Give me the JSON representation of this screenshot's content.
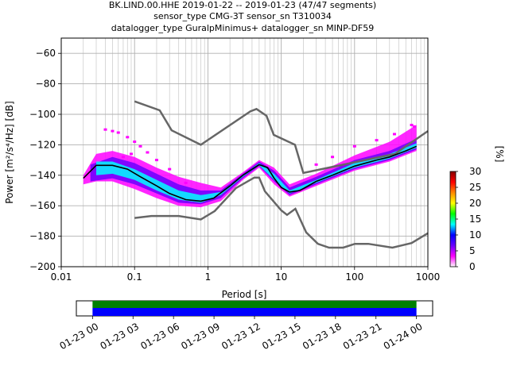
{
  "chart_data": {
    "type": "heatmap",
    "title_lines": [
      "BK.LIND.00.HHE   2019-01-22 -- 2019-01-23  (47/47 segments)",
      "sensor_type CMG-3T sensor_sn T310034",
      "datalogger_type GuralpMinimus+ datalogger_sn MINP-DF59"
    ],
    "xlabel": "Period [s]",
    "ylabel": "Power [m²/s⁴/Hz] [dB]",
    "x_scale": "log",
    "xlim": [
      0.01,
      1000
    ],
    "ylim": [
      -200,
      -50
    ],
    "x_ticks": [
      {
        "value": 0.01,
        "label": "0.01"
      },
      {
        "value": 0.1,
        "label": "0.1"
      },
      {
        "value": 1,
        "label": "1"
      },
      {
        "value": 10,
        "label": "10"
      },
      {
        "value": 100,
        "label": "100"
      },
      {
        "value": 1000,
        "label": "1000"
      }
    ],
    "y_ticks": [
      {
        "value": -60,
        "label": "−60"
      },
      {
        "value": -80,
        "label": "−80"
      },
      {
        "value": -100,
        "label": "−100"
      },
      {
        "value": -120,
        "label": "−120"
      },
      {
        "value": -140,
        "label": "−140"
      },
      {
        "value": -160,
        "label": "−160"
      },
      {
        "value": -180,
        "label": "−180"
      },
      {
        "value": -200,
        "label": "−200"
      }
    ],
    "grid": true,
    "colorbar": {
      "label": "[%]",
      "range": [
        0,
        30
      ],
      "ticks": [
        {
          "value": 0,
          "label": "0"
        },
        {
          "value": 5,
          "label": "5"
        },
        {
          "value": 10,
          "label": "10"
        },
        {
          "value": 15,
          "label": "15"
        },
        {
          "value": 20,
          "label": "20"
        },
        {
          "value": 25,
          "label": "25"
        },
        {
          "value": 30,
          "label": "30"
        }
      ],
      "colors": [
        "#ffffff",
        "#ff00ff",
        "#6a00ff",
        "#0000ff",
        "#00ffff",
        "#00ff00",
        "#ffff00",
        "#ff8800",
        "#ff0000",
        "#880000"
      ]
    },
    "noise_models": {
      "new_high_noise_model": [
        [
          0.1,
          -91.5
        ],
        [
          0.22,
          -97.4
        ],
        [
          0.32,
          -110.5
        ],
        [
          0.8,
          -120
        ],
        [
          3.8,
          -98
        ],
        [
          4.6,
          -96.5
        ],
        [
          6.3,
          -101
        ],
        [
          7.9,
          -113.5
        ],
        [
          15.4,
          -120
        ],
        [
          20,
          -138.5
        ],
        [
          354.8,
          -126
        ],
        [
          1000,
          -111
        ]
      ],
      "new_low_noise_model": [
        [
          0.1,
          -168
        ],
        [
          0.17,
          -166.7
        ],
        [
          0.4,
          -166.7
        ],
        [
          0.8,
          -169
        ],
        [
          1.24,
          -163.5
        ],
        [
          2.4,
          -148.5
        ],
        [
          4.3,
          -141.5
        ],
        [
          5.0,
          -141.5
        ],
        [
          6.0,
          -150.5
        ],
        [
          10,
          -163
        ],
        [
          12,
          -166
        ],
        [
          15.6,
          -162
        ],
        [
          21.9,
          -177.5
        ],
        [
          31.6,
          -185
        ],
        [
          45,
          -187.5
        ],
        [
          70,
          -187.5
        ],
        [
          101,
          -185
        ],
        [
          154,
          -185
        ],
        [
          328,
          -187.5
        ],
        [
          600,
          -184.5
        ],
        [
          1000,
          -178
        ]
      ]
    },
    "mean_curve": [
      [
        0.02,
        -142
      ],
      [
        0.03,
        -133.5
      ],
      [
        0.05,
        -133.5
      ],
      [
        0.08,
        -136
      ],
      [
        0.12,
        -141
      ],
      [
        0.2,
        -147
      ],
      [
        0.3,
        -152
      ],
      [
        0.5,
        -156
      ],
      [
        0.8,
        -157
      ],
      [
        1.2,
        -155
      ],
      [
        2,
        -147
      ],
      [
        3,
        -140
      ],
      [
        5,
        -133
      ],
      [
        6.5,
        -135
      ],
      [
        8,
        -142
      ],
      [
        10,
        -148
      ],
      [
        13,
        -151
      ],
      [
        18,
        -150
      ],
      [
        30,
        -144
      ],
      [
        50,
        -140
      ],
      [
        100,
        -134
      ],
      [
        200,
        -130
      ],
      [
        300,
        -128
      ],
      [
        500,
        -124
      ],
      [
        700,
        -121
      ]
    ],
    "density_bands": [
      {
        "lo": [
          [
            0.02,
            -146
          ],
          [
            0.03,
            -144
          ],
          [
            0.05,
            -144
          ],
          [
            0.1,
            -149
          ],
          [
            0.2,
            -155
          ],
          [
            0.4,
            -160
          ],
          [
            0.8,
            -161
          ],
          [
            1.5,
            -157
          ],
          [
            3,
            -143
          ],
          [
            5,
            -135
          ],
          [
            8,
            -146
          ],
          [
            13,
            -154
          ],
          [
            30,
            -147
          ],
          [
            100,
            -137
          ],
          [
            300,
            -131
          ],
          [
            700,
            -124
          ]
        ],
        "hi": [
          [
            0.02,
            -140
          ],
          [
            0.03,
            -126
          ],
          [
            0.05,
            -124
          ],
          [
            0.1,
            -128
          ],
          [
            0.2,
            -135
          ],
          [
            0.4,
            -141
          ],
          [
            0.8,
            -145
          ],
          [
            1.5,
            -148
          ],
          [
            3,
            -138
          ],
          [
            5,
            -130
          ],
          [
            8,
            -135
          ],
          [
            13,
            -146
          ],
          [
            30,
            -139
          ],
          [
            100,
            -127
          ],
          [
            300,
            -118
          ],
          [
            700,
            -107
          ]
        ],
        "pct": 1
      },
      {
        "lo": [
          [
            0.025,
            -144
          ],
          [
            0.05,
            -142
          ],
          [
            0.1,
            -146
          ],
          [
            0.2,
            -152
          ],
          [
            0.4,
            -158
          ],
          [
            0.8,
            -159
          ],
          [
            1.5,
            -155
          ],
          [
            3,
            -142
          ],
          [
            5,
            -134
          ],
          [
            8,
            -144
          ],
          [
            13,
            -153
          ],
          [
            30,
            -146
          ],
          [
            100,
            -136
          ],
          [
            300,
            -130
          ],
          [
            700,
            -123
          ]
        ],
        "hi": [
          [
            0.025,
            -133
          ],
          [
            0.05,
            -128
          ],
          [
            0.1,
            -132
          ],
          [
            0.2,
            -139
          ],
          [
            0.4,
            -146
          ],
          [
            0.8,
            -150
          ],
          [
            1.5,
            -150
          ],
          [
            3,
            -139
          ],
          [
            5,
            -131
          ],
          [
            8,
            -137
          ],
          [
            13,
            -148
          ],
          [
            30,
            -141
          ],
          [
            100,
            -130
          ],
          [
            300,
            -124
          ],
          [
            700,
            -116
          ]
        ],
        "pct": 6
      },
      {
        "lo": [
          [
            0.03,
            -140
          ],
          [
            0.05,
            -139
          ],
          [
            0.1,
            -143
          ],
          [
            0.2,
            -150
          ],
          [
            0.4,
            -156
          ],
          [
            0.8,
            -158
          ],
          [
            1.5,
            -153
          ],
          [
            3,
            -141
          ],
          [
            5,
            -133.5
          ],
          [
            8,
            -143
          ],
          [
            13,
            -152
          ],
          [
            30,
            -145
          ],
          [
            100,
            -135
          ],
          [
            300,
            -129
          ],
          [
            700,
            -122
          ]
        ],
        "hi": [
          [
            0.03,
            -131
          ],
          [
            0.05,
            -131
          ],
          [
            0.1,
            -136
          ],
          [
            0.2,
            -143
          ],
          [
            0.4,
            -150
          ],
          [
            0.8,
            -153
          ],
          [
            1.5,
            -151
          ],
          [
            3,
            -140
          ],
          [
            5,
            -132
          ],
          [
            8,
            -139
          ],
          [
            13,
            -150
          ],
          [
            30,
            -143
          ],
          [
            100,
            -132
          ],
          [
            300,
            -126
          ],
          [
            700,
            -119
          ]
        ],
        "pct": 12
      }
    ],
    "sparse_points": [
      [
        0.04,
        -110
      ],
      [
        0.05,
        -111
      ],
      [
        0.06,
        -112
      ],
      [
        0.08,
        -115
      ],
      [
        0.1,
        -118
      ],
      [
        0.12,
        -121
      ],
      [
        0.2,
        -130
      ],
      [
        0.3,
        -136
      ],
      [
        0.5,
        -145
      ],
      [
        600,
        -107
      ],
      [
        650,
        -108
      ],
      [
        350,
        -113
      ],
      [
        200,
        -117
      ],
      [
        100,
        -121
      ],
      [
        50,
        -128
      ],
      [
        30,
        -133
      ],
      [
        0.15,
        -125
      ],
      [
        0.07,
        -128
      ],
      [
        0.09,
        -126
      ]
    ]
  },
  "availability": {
    "tick_labels": [
      "01-23 00",
      "01-23 03",
      "01-23 06",
      "01-23 09",
      "01-23 12",
      "01-23 15",
      "01-23 18",
      "01-23 21",
      "01-24 00"
    ],
    "tick_hours": [
      0,
      3,
      6,
      9,
      12,
      15,
      18,
      21,
      24
    ],
    "coverage_start_hour": 0,
    "coverage_end_hour": 24,
    "range_hours": [
      -1.2,
      25.2
    ],
    "top_color": "#008000",
    "bottom_color": "#0000ff"
  }
}
